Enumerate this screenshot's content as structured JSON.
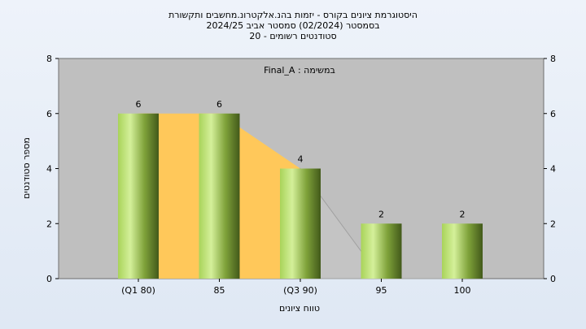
{
  "chart_data": {
    "type": "bar",
    "title_lines": [
      "היסטוגרמת ציונים בקורס - יזמות בהנ.אלקטרונ.מחשבים ותקשורת",
      "בסמסטר  (02/2024)  סמסטר אביב 2024/25",
      "סטודנטים רשומים - 20"
    ],
    "subtitle": "במשימה : Final_A",
    "xlabel": "טווח ציונים",
    "ylabel": "מספר סטודנטים",
    "ylim": [
      0,
      8
    ],
    "yticks": [
      0,
      2,
      4,
      6,
      8
    ],
    "categories": [
      "(Q1 80)",
      "85",
      "(Q3 90)",
      "95",
      "100"
    ],
    "values": [
      6,
      6,
      4,
      2,
      2
    ],
    "data_labels": [
      "6",
      "6",
      "4",
      "2",
      "2"
    ],
    "quartile_area": {
      "highlighted_range": [
        "(Q1 80)",
        "(Q3 90)"
      ]
    },
    "legend": "none",
    "grid": false,
    "colors": {
      "plot_bg": "#bfbfbf",
      "bar_light": "#c5e88a",
      "bar_dark": "#4d6a1a",
      "area_fill": "#ffc85a",
      "area_tail": "#c4c4c4"
    }
  }
}
